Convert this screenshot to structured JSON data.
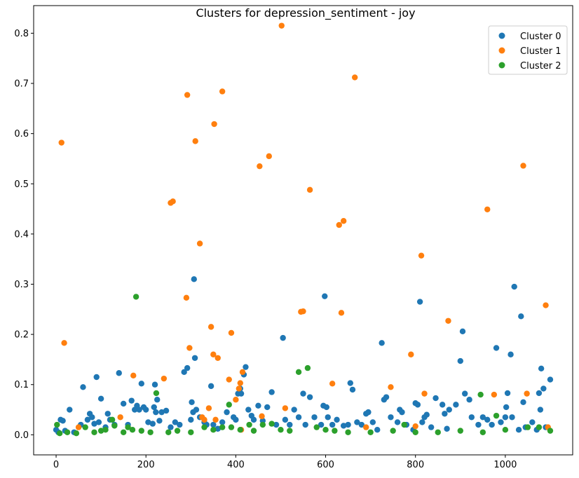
{
  "chart_data": {
    "type": "scatter",
    "title": "Clusters for depression_sentiment - joy",
    "xlabel": "",
    "ylabel": "",
    "xlim": [
      -50,
      1150
    ],
    "ylim": [
      -0.04,
      0.855
    ],
    "x_ticks": [
      0,
      200,
      400,
      600,
      800,
      1000
    ],
    "y_ticks": [
      0.0,
      0.1,
      0.2,
      0.3,
      0.4,
      0.5,
      0.6,
      0.7,
      0.8
    ],
    "y_tick_labels": [
      "0.0",
      "0.1",
      "0.2",
      "0.3",
      "0.4",
      "0.5",
      "0.6",
      "0.7",
      "0.8"
    ],
    "grid": false,
    "legend_position": "top-right",
    "series": [
      {
        "name": "Cluster 0",
        "color": "#1f77b4",
        "points": [
          [
            0,
            0.01
          ],
          [
            5,
            0.005
          ],
          [
            10,
            0.03
          ],
          [
            15,
            0.028
          ],
          [
            20,
            0.008
          ],
          [
            30,
            0.05
          ],
          [
            40,
            0.005
          ],
          [
            55,
            0.02
          ],
          [
            60,
            0.095
          ],
          [
            70,
            0.03
          ],
          [
            75,
            0.042
          ],
          [
            80,
            0.035
          ],
          [
            85,
            0.022
          ],
          [
            90,
            0.115
          ],
          [
            95,
            0.025
          ],
          [
            100,
            0.072
          ],
          [
            110,
            0.015
          ],
          [
            115,
            0.042
          ],
          [
            120,
            0.03
          ],
          [
            130,
            0.02
          ],
          [
            140,
            0.123
          ],
          [
            150,
            0.062
          ],
          [
            160,
            0.02
          ],
          [
            168,
            0.068
          ],
          [
            175,
            0.05
          ],
          [
            180,
            0.058
          ],
          [
            185,
            0.05
          ],
          [
            190,
            0.102
          ],
          [
            195,
            0.055
          ],
          [
            200,
            0.05
          ],
          [
            205,
            0.025
          ],
          [
            215,
            0.022
          ],
          [
            218,
            0.055
          ],
          [
            220,
            0.1
          ],
          [
            222,
            0.045
          ],
          [
            225,
            0.07
          ],
          [
            230,
            0.028
          ],
          [
            235,
            0.045
          ],
          [
            245,
            0.048
          ],
          [
            255,
            0.015
          ],
          [
            265,
            0.025
          ],
          [
            275,
            0.02
          ],
          [
            285,
            0.125
          ],
          [
            292,
            0.133
          ],
          [
            300,
            0.03
          ],
          [
            302,
            0.065
          ],
          [
            305,
            0.045
          ],
          [
            307,
            0.31
          ],
          [
            309,
            0.153
          ],
          [
            312,
            0.05
          ],
          [
            320,
            0.035
          ],
          [
            330,
            0.025
          ],
          [
            335,
            0.02
          ],
          [
            345,
            0.097
          ],
          [
            350,
            0.02
          ],
          [
            360,
            0.012
          ],
          [
            370,
            0.025
          ],
          [
            380,
            0.045
          ],
          [
            395,
            0.035
          ],
          [
            400,
            0.03
          ],
          [
            405,
            0.082
          ],
          [
            410,
            0.092
          ],
          [
            412,
            0.082
          ],
          [
            418,
            0.12
          ],
          [
            422,
            0.135
          ],
          [
            428,
            0.05
          ],
          [
            435,
            0.038
          ],
          [
            440,
            0.03
          ],
          [
            450,
            0.058
          ],
          [
            460,
            0.028
          ],
          [
            470,
            0.055
          ],
          [
            480,
            0.085
          ],
          [
            490,
            0.02
          ],
          [
            505,
            0.193
          ],
          [
            510,
            0.03
          ],
          [
            520,
            0.02
          ],
          [
            530,
            0.05
          ],
          [
            540,
            0.035
          ],
          [
            550,
            0.082
          ],
          [
            555,
            0.02
          ],
          [
            565,
            0.075
          ],
          [
            575,
            0.035
          ],
          [
            590,
            0.02
          ],
          [
            595,
            0.058
          ],
          [
            598,
            0.276
          ],
          [
            602,
            0.055
          ],
          [
            605,
            0.035
          ],
          [
            615,
            0.02
          ],
          [
            625,
            0.03
          ],
          [
            640,
            0.018
          ],
          [
            650,
            0.02
          ],
          [
            655,
            0.103
          ],
          [
            660,
            0.09
          ],
          [
            670,
            0.025
          ],
          [
            680,
            0.02
          ],
          [
            690,
            0.042
          ],
          [
            695,
            0.045
          ],
          [
            705,
            0.025
          ],
          [
            715,
            0.01
          ],
          [
            725,
            0.183
          ],
          [
            730,
            0.07
          ],
          [
            735,
            0.075
          ],
          [
            745,
            0.035
          ],
          [
            760,
            0.025
          ],
          [
            765,
            0.05
          ],
          [
            770,
            0.045
          ],
          [
            780,
            0.02
          ],
          [
            795,
            0.01
          ],
          [
            800,
            0.063
          ],
          [
            805,
            0.06
          ],
          [
            810,
            0.265
          ],
          [
            815,
            0.025
          ],
          [
            820,
            0.035
          ],
          [
            825,
            0.04
          ],
          [
            835,
            0.015
          ],
          [
            845,
            0.073
          ],
          [
            860,
            0.06
          ],
          [
            865,
            0.042
          ],
          [
            870,
            0.012
          ],
          [
            875,
            0.05
          ],
          [
            890,
            0.06
          ],
          [
            900,
            0.147
          ],
          [
            905,
            0.206
          ],
          [
            910,
            0.082
          ],
          [
            920,
            0.07
          ],
          [
            925,
            0.035
          ],
          [
            940,
            0.02
          ],
          [
            950,
            0.035
          ],
          [
            960,
            0.03
          ],
          [
            970,
            0.02
          ],
          [
            980,
            0.173
          ],
          [
            990,
            0.025
          ],
          [
            1000,
            0.035
          ],
          [
            1002,
            0.055
          ],
          [
            1005,
            0.083
          ],
          [
            1012,
            0.16
          ],
          [
            1015,
            0.035
          ],
          [
            1020,
            0.295
          ],
          [
            1030,
            0.01
          ],
          [
            1035,
            0.236
          ],
          [
            1040,
            0.065
          ],
          [
            1045,
            0.015
          ],
          [
            1060,
            0.025
          ],
          [
            1070,
            0.01
          ],
          [
            1075,
            0.083
          ],
          [
            1078,
            0.05
          ],
          [
            1080,
            0.132
          ],
          [
            1085,
            0.092
          ],
          [
            1090,
            0.015
          ],
          [
            1100,
            0.11
          ]
        ]
      },
      {
        "name": "Cluster 1",
        "color": "#ff7f0e",
        "points": [
          [
            12,
            0.582
          ],
          [
            18,
            0.183
          ],
          [
            50,
            0.015
          ],
          [
            143,
            0.035
          ],
          [
            172,
            0.118
          ],
          [
            240,
            0.112
          ],
          [
            255,
            0.462
          ],
          [
            260,
            0.465
          ],
          [
            290,
            0.273
          ],
          [
            292,
            0.677
          ],
          [
            297,
            0.173
          ],
          [
            310,
            0.585
          ],
          [
            320,
            0.381
          ],
          [
            325,
            0.035
          ],
          [
            330,
            0.03
          ],
          [
            340,
            0.053
          ],
          [
            345,
            0.215
          ],
          [
            350,
            0.16
          ],
          [
            352,
            0.619
          ],
          [
            355,
            0.03
          ],
          [
            360,
            0.153
          ],
          [
            370,
            0.684
          ],
          [
            385,
            0.11
          ],
          [
            390,
            0.203
          ],
          [
            400,
            0.07
          ],
          [
            407,
            0.092
          ],
          [
            410,
            0.103
          ],
          [
            412,
            0.01
          ],
          [
            415,
            0.125
          ],
          [
            453,
            0.535
          ],
          [
            458,
            0.037
          ],
          [
            474,
            0.555
          ],
          [
            502,
            0.815
          ],
          [
            510,
            0.053
          ],
          [
            545,
            0.245
          ],
          [
            550,
            0.246
          ],
          [
            565,
            0.488
          ],
          [
            615,
            0.102
          ],
          [
            630,
            0.418
          ],
          [
            635,
            0.243
          ],
          [
            640,
            0.426
          ],
          [
            665,
            0.712
          ],
          [
            690,
            0.015
          ],
          [
            745,
            0.095
          ],
          [
            790,
            0.16
          ],
          [
            800,
            0.017
          ],
          [
            813,
            0.357
          ],
          [
            820,
            0.082
          ],
          [
            873,
            0.227
          ],
          [
            960,
            0.449
          ],
          [
            975,
            0.08
          ],
          [
            1040,
            0.536
          ],
          [
            1048,
            0.082
          ],
          [
            1090,
            0.258
          ],
          [
            1095,
            0.015
          ]
        ]
      },
      {
        "name": "Cluster 2",
        "color": "#2ca02c",
        "points": [
          [
            2,
            0.02
          ],
          [
            8,
            0.003
          ],
          [
            25,
            0.005
          ],
          [
            45,
            0.003
          ],
          [
            65,
            0.015
          ],
          [
            85,
            0.005
          ],
          [
            100,
            0.008
          ],
          [
            110,
            0.01
          ],
          [
            125,
            0.03
          ],
          [
            130,
            0.018
          ],
          [
            150,
            0.005
          ],
          [
            160,
            0.015
          ],
          [
            170,
            0.01
          ],
          [
            178,
            0.275
          ],
          [
            190,
            0.008
          ],
          [
            210,
            0.005
          ],
          [
            223,
            0.083
          ],
          [
            250,
            0.005
          ],
          [
            270,
            0.008
          ],
          [
            300,
            0.005
          ],
          [
            330,
            0.015
          ],
          [
            350,
            0.01
          ],
          [
            370,
            0.015
          ],
          [
            385,
            0.06
          ],
          [
            390,
            0.015
          ],
          [
            410,
            0.01
          ],
          [
            430,
            0.02
          ],
          [
            440,
            0.008
          ],
          [
            460,
            0.02
          ],
          [
            480,
            0.022
          ],
          [
            500,
            0.01
          ],
          [
            520,
            0.008
          ],
          [
            540,
            0.125
          ],
          [
            560,
            0.133
          ],
          [
            580,
            0.015
          ],
          [
            600,
            0.01
          ],
          [
            620,
            0.008
          ],
          [
            650,
            0.005
          ],
          [
            700,
            0.005
          ],
          [
            750,
            0.008
          ],
          [
            775,
            0.02
          ],
          [
            800,
            0.005
          ],
          [
            850,
            0.005
          ],
          [
            900,
            0.008
          ],
          [
            945,
            0.08
          ],
          [
            950,
            0.005
          ],
          [
            980,
            0.038
          ],
          [
            1000,
            0.01
          ],
          [
            1050,
            0.015
          ],
          [
            1075,
            0.015
          ],
          [
            1100,
            0.008
          ]
        ]
      }
    ]
  }
}
